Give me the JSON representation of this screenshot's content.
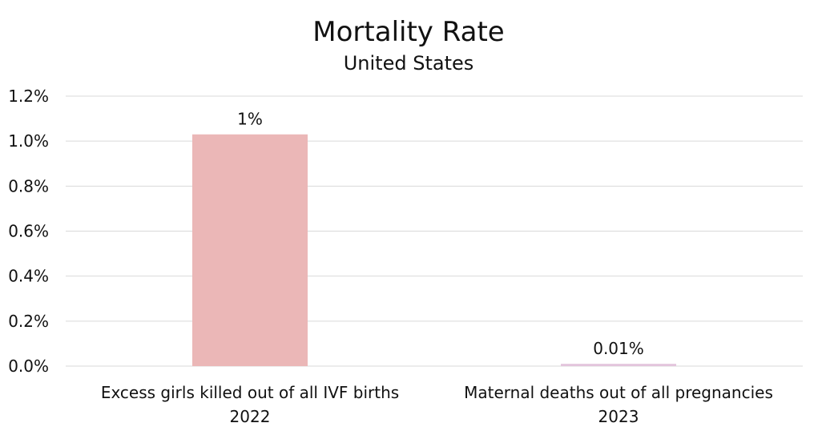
{
  "chart_data": {
    "type": "bar",
    "title": "Mortality Rate",
    "subtitle": "United States",
    "xlabel": "",
    "ylabel": "",
    "ylim": [
      0,
      1.2
    ],
    "yticks": [
      0.0,
      0.2,
      0.4,
      0.6,
      0.8,
      1.0,
      1.2
    ],
    "ytick_labels": [
      "0.0%",
      "0.2%",
      "0.4%",
      "0.6%",
      "0.8%",
      "1.0%",
      "1.2%"
    ],
    "grid": true,
    "legend": "none",
    "categories": [
      [
        "Excess girls killed out of all IVF births",
        "2022"
      ],
      [
        "Maternal deaths out of all pregnancies",
        "2023"
      ]
    ],
    "values": [
      1.03,
      0.01
    ],
    "data_labels": [
      "1%",
      "0.01%"
    ],
    "colors": [
      "#ebb7b7",
      "#e3c4dc"
    ]
  }
}
